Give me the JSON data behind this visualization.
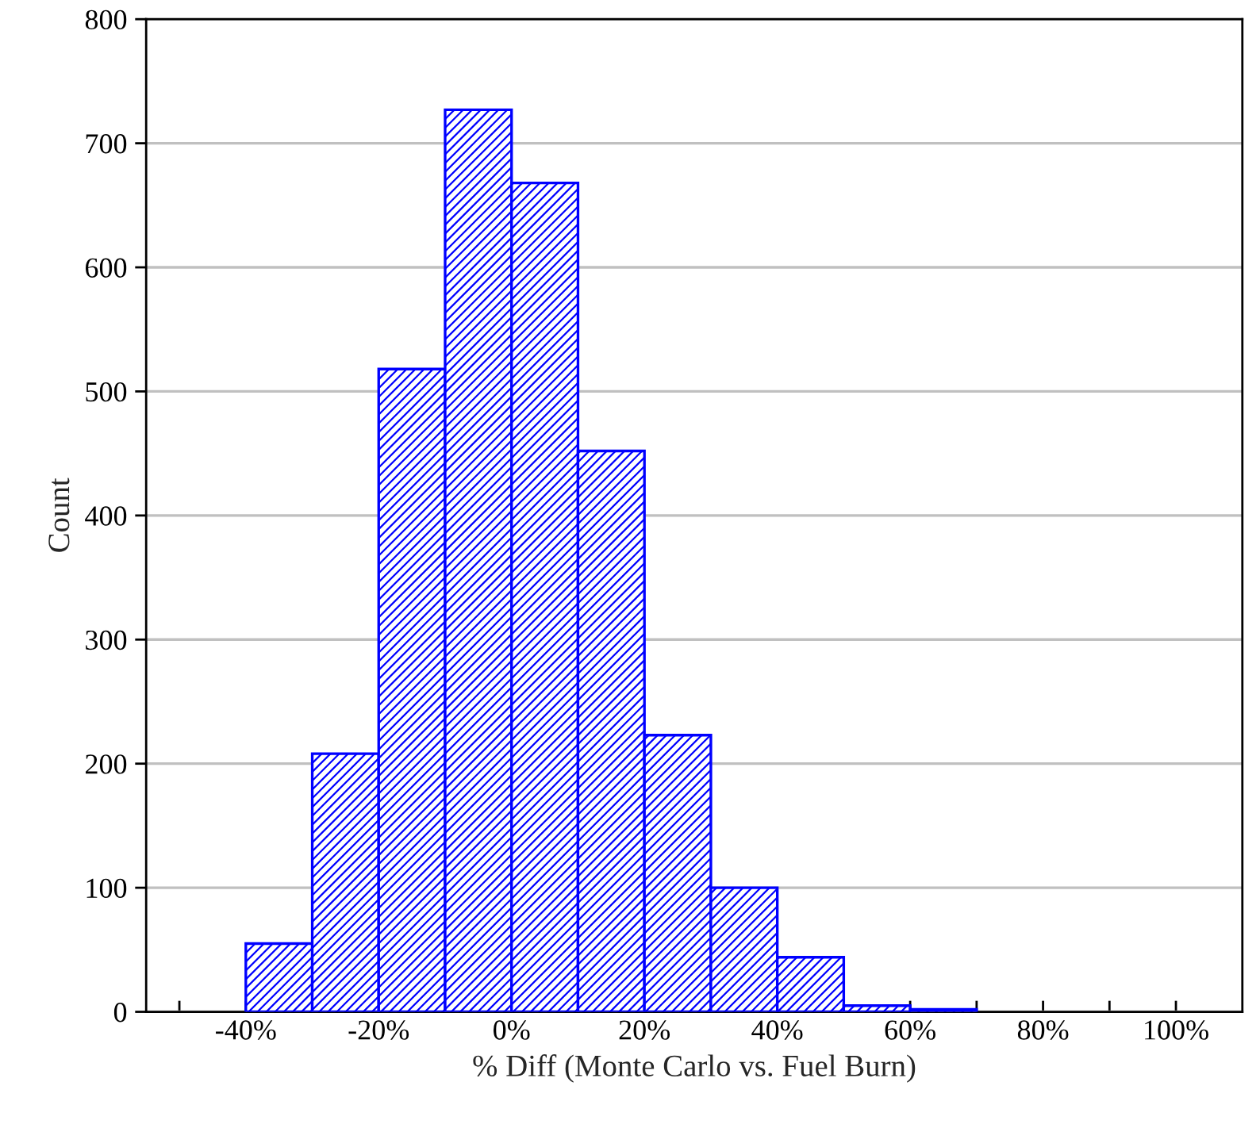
{
  "chart_data": {
    "type": "histogram",
    "xlabel": "% Diff (Monte Carlo vs. Fuel Burn)",
    "ylabel": "Count",
    "bins": [
      -40,
      -30,
      -20,
      -10,
      0,
      10,
      20,
      30,
      40,
      50,
      60,
      70
    ],
    "values": [
      55,
      208,
      518,
      727,
      668,
      452,
      223,
      100,
      44,
      5,
      2
    ],
    "color": "#0000ff",
    "xlim": [
      -55,
      110
    ],
    "xticks": [
      {
        "value": -50,
        "label": null
      },
      {
        "value": -40,
        "label": "-40%"
      },
      {
        "value": -30,
        "label": null
      },
      {
        "value": -20,
        "label": "-20%"
      },
      {
        "value": -10,
        "label": null
      },
      {
        "value": 0,
        "label": "0%"
      },
      {
        "value": 10,
        "label": null
      },
      {
        "value": 20,
        "label": "20%"
      },
      {
        "value": 30,
        "label": null
      },
      {
        "value": 40,
        "label": "40%"
      },
      {
        "value": 50,
        "label": null
      },
      {
        "value": 60,
        "label": "60%"
      },
      {
        "value": 70,
        "label": null
      },
      {
        "value": 80,
        "label": "80%"
      },
      {
        "value": 90,
        "label": null
      },
      {
        "value": 100,
        "label": "100%"
      }
    ],
    "ylim": [
      0,
      800
    ],
    "yticks": [
      0,
      100,
      200,
      300,
      400,
      500,
      600,
      700,
      800
    ],
    "grid": "y"
  }
}
